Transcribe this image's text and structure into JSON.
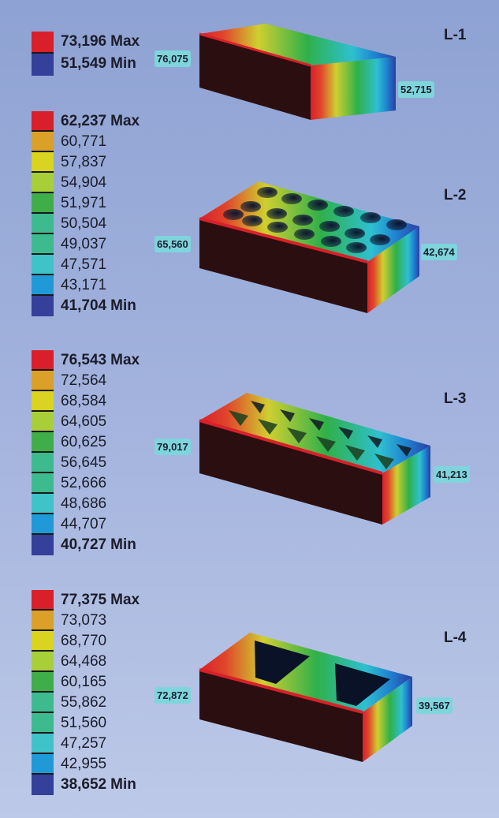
{
  "colors": [
    "#d9202a",
    "#dba027",
    "#d9d420",
    "#a8cf38",
    "#3fae48",
    "#3dbb8f",
    "#3ec3c9",
    "#1f9ad6",
    "#34409a"
  ],
  "legends": [
    {
      "id": "L-1",
      "entries": [
        {
          "value": "73,196",
          "suffix": "Max",
          "color": "#d9202a"
        },
        {
          "value": "51,549",
          "suffix": "Min",
          "color": "#34409a"
        }
      ]
    },
    {
      "id": "L-2",
      "entries": [
        {
          "value": "62,237",
          "suffix": "Max",
          "color": "#d9202a"
        },
        {
          "value": "60,771",
          "color": "#dba027"
        },
        {
          "value": "57,837",
          "color": "#d9d420"
        },
        {
          "value": "54,904",
          "color": "#a8cf38"
        },
        {
          "value": "51,971",
          "color": "#3fae48"
        },
        {
          "value": "50,504",
          "color": "#3dbb8f"
        },
        {
          "value": "49,037",
          "color": "#3dbb8f"
        },
        {
          "value": "47,571",
          "color": "#3ec3c9"
        },
        {
          "value": "43,171",
          "color": "#1f9ad6"
        },
        {
          "value": "41,704",
          "suffix": "Min",
          "color": "#34409a"
        }
      ]
    },
    {
      "id": "L-3",
      "entries": [
        {
          "value": "76,543",
          "suffix": "Max",
          "color": "#d9202a"
        },
        {
          "value": "72,564",
          "color": "#dba027"
        },
        {
          "value": "68,584",
          "color": "#d9d420"
        },
        {
          "value": "64,605",
          "color": "#a8cf38"
        },
        {
          "value": "60,625",
          "color": "#3fae48"
        },
        {
          "value": "56,645",
          "color": "#3dbb8f"
        },
        {
          "value": "52,666",
          "color": "#3dbb8f"
        },
        {
          "value": "48,686",
          "color": "#3ec3c9"
        },
        {
          "value": "44,707",
          "color": "#1f9ad6"
        },
        {
          "value": "40,727",
          "suffix": "Min",
          "color": "#34409a"
        }
      ]
    },
    {
      "id": "L-4",
      "entries": [
        {
          "value": "77,375",
          "suffix": "Max",
          "color": "#d9202a"
        },
        {
          "value": "73,073",
          "color": "#dba027"
        },
        {
          "value": "68,770",
          "color": "#d9d420"
        },
        {
          "value": "64,468",
          "color": "#a8cf38"
        },
        {
          "value": "60,165",
          "color": "#3fae48"
        },
        {
          "value": "55,862",
          "color": "#3dbb8f"
        },
        {
          "value": "51,560",
          "color": "#3dbb8f"
        },
        {
          "value": "47,257",
          "color": "#3ec3c9"
        },
        {
          "value": "42,955",
          "color": "#1f9ad6"
        },
        {
          "value": "38,652",
          "suffix": "Min",
          "color": "#34409a"
        }
      ]
    }
  ],
  "bricks": [
    {
      "label": "L-1",
      "probe_left": "76,075",
      "probe_right": "52,715"
    },
    {
      "label": "L-2",
      "probe_left": "65,560",
      "probe_right": "42,674"
    },
    {
      "label": "L-3",
      "probe_left": "79,017",
      "probe_right": "41,213"
    },
    {
      "label": "L-4",
      "probe_left": "72,872",
      "probe_right": "39,567"
    }
  ]
}
